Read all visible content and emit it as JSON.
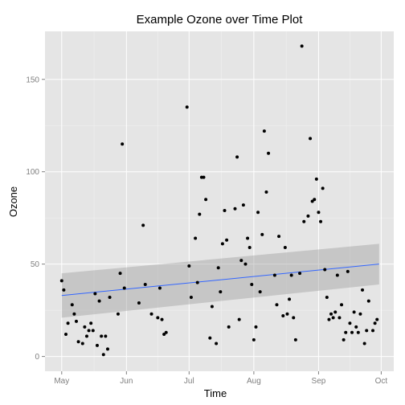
{
  "chart_data": {
    "type": "scatter",
    "title": "Example Ozone over Time Plot",
    "xlabel": "Time",
    "ylabel": "Ozone",
    "xlim": [
      "1973-04-23",
      "1973-10-07"
    ],
    "ylim": [
      -8,
      176
    ],
    "grid": true,
    "x_ticks": [
      {
        "date": "1973-05-01",
        "label": "May"
      },
      {
        "date": "1973-06-01",
        "label": "Jun"
      },
      {
        "date": "1973-07-01",
        "label": "Jul"
      },
      {
        "date": "1973-08-01",
        "label": "Aug"
      },
      {
        "date": "1973-09-01",
        "label": "Sep"
      },
      {
        "date": "1973-10-01",
        "label": "Oct"
      }
    ],
    "y_ticks": [
      {
        "value": 0,
        "label": "0"
      },
      {
        "value": 50,
        "label": "50"
      },
      {
        "value": 100,
        "label": "100"
      },
      {
        "value": 150,
        "label": "150"
      }
    ],
    "points": [
      {
        "x": "1973-05-01",
        "y": 41
      },
      {
        "x": "1973-05-02",
        "y": 36
      },
      {
        "x": "1973-05-03",
        "y": 12
      },
      {
        "x": "1973-05-04",
        "y": 18
      },
      {
        "x": "1973-05-06",
        "y": 28
      },
      {
        "x": "1973-05-07",
        "y": 23
      },
      {
        "x": "1973-05-08",
        "y": 19
      },
      {
        "x": "1973-05-09",
        "y": 8
      },
      {
        "x": "1973-05-11",
        "y": 7
      },
      {
        "x": "1973-05-12",
        "y": 16
      },
      {
        "x": "1973-05-13",
        "y": 11
      },
      {
        "x": "1973-05-14",
        "y": 14
      },
      {
        "x": "1973-05-15",
        "y": 18
      },
      {
        "x": "1973-05-16",
        "y": 14
      },
      {
        "x": "1973-05-17",
        "y": 34
      },
      {
        "x": "1973-05-18",
        "y": 6
      },
      {
        "x": "1973-05-19",
        "y": 30
      },
      {
        "x": "1973-05-20",
        "y": 11
      },
      {
        "x": "1973-05-21",
        "y": 1
      },
      {
        "x": "1973-05-22",
        "y": 11
      },
      {
        "x": "1973-05-23",
        "y": 4
      },
      {
        "x": "1973-05-24",
        "y": 32
      },
      {
        "x": "1973-05-28",
        "y": 23
      },
      {
        "x": "1973-05-29",
        "y": 45
      },
      {
        "x": "1973-05-30",
        "y": 115
      },
      {
        "x": "1973-05-31",
        "y": 37
      },
      {
        "x": "1973-06-07",
        "y": 29
      },
      {
        "x": "1973-06-09",
        "y": 71
      },
      {
        "x": "1973-06-10",
        "y": 39
      },
      {
        "x": "1973-06-13",
        "y": 23
      },
      {
        "x": "1973-06-16",
        "y": 21
      },
      {
        "x": "1973-06-17",
        "y": 37
      },
      {
        "x": "1973-06-18",
        "y": 20
      },
      {
        "x": "1973-06-19",
        "y": 12
      },
      {
        "x": "1973-06-20",
        "y": 13
      },
      {
        "x": "1973-06-30",
        "y": 135
      },
      {
        "x": "1973-07-01",
        "y": 49
      },
      {
        "x": "1973-07-02",
        "y": 32
      },
      {
        "x": "1973-07-04",
        "y": 64
      },
      {
        "x": "1973-07-05",
        "y": 40
      },
      {
        "x": "1973-07-06",
        "y": 77
      },
      {
        "x": "1973-07-07",
        "y": 97
      },
      {
        "x": "1973-07-08",
        "y": 97
      },
      {
        "x": "1973-07-09",
        "y": 85
      },
      {
        "x": "1973-07-11",
        "y": 10
      },
      {
        "x": "1973-07-12",
        "y": 27
      },
      {
        "x": "1973-07-14",
        "y": 7
      },
      {
        "x": "1973-07-15",
        "y": 48
      },
      {
        "x": "1973-07-16",
        "y": 35
      },
      {
        "x": "1973-07-17",
        "y": 61
      },
      {
        "x": "1973-07-18",
        "y": 79
      },
      {
        "x": "1973-07-19",
        "y": 63
      },
      {
        "x": "1973-07-20",
        "y": 16
      },
      {
        "x": "1973-07-23",
        "y": 80
      },
      {
        "x": "1973-07-24",
        "y": 108
      },
      {
        "x": "1973-07-25",
        "y": 20
      },
      {
        "x": "1973-07-26",
        "y": 52
      },
      {
        "x": "1973-07-27",
        "y": 82
      },
      {
        "x": "1973-07-28",
        "y": 50
      },
      {
        "x": "1973-07-29",
        "y": 64
      },
      {
        "x": "1973-07-30",
        "y": 59
      },
      {
        "x": "1973-07-31",
        "y": 39
      },
      {
        "x": "1973-08-01",
        "y": 9
      },
      {
        "x": "1973-08-02",
        "y": 16
      },
      {
        "x": "1973-08-03",
        "y": 78
      },
      {
        "x": "1973-08-04",
        "y": 35
      },
      {
        "x": "1973-08-05",
        "y": 66
      },
      {
        "x": "1973-08-06",
        "y": 122
      },
      {
        "x": "1973-08-07",
        "y": 89
      },
      {
        "x": "1973-08-08",
        "y": 110
      },
      {
        "x": "1973-08-11",
        "y": 44
      },
      {
        "x": "1973-08-12",
        "y": 28
      },
      {
        "x": "1973-08-13",
        "y": 65
      },
      {
        "x": "1973-08-15",
        "y": 22
      },
      {
        "x": "1973-08-16",
        "y": 59
      },
      {
        "x": "1973-08-17",
        "y": 23
      },
      {
        "x": "1973-08-18",
        "y": 31
      },
      {
        "x": "1973-08-19",
        "y": 44
      },
      {
        "x": "1973-08-20",
        "y": 21
      },
      {
        "x": "1973-08-21",
        "y": 9
      },
      {
        "x": "1973-08-23",
        "y": 45
      },
      {
        "x": "1973-08-24",
        "y": 168
      },
      {
        "x": "1973-08-25",
        "y": 73
      },
      {
        "x": "1973-08-27",
        "y": 76
      },
      {
        "x": "1973-08-28",
        "y": 118
      },
      {
        "x": "1973-08-29",
        "y": 84
      },
      {
        "x": "1973-08-30",
        "y": 85
      },
      {
        "x": "1973-08-31",
        "y": 96
      },
      {
        "x": "1973-09-01",
        "y": 78
      },
      {
        "x": "1973-09-02",
        "y": 73
      },
      {
        "x": "1973-09-03",
        "y": 91
      },
      {
        "x": "1973-09-04",
        "y": 47
      },
      {
        "x": "1973-09-05",
        "y": 32
      },
      {
        "x": "1973-09-06",
        "y": 20
      },
      {
        "x": "1973-09-07",
        "y": 23
      },
      {
        "x": "1973-09-08",
        "y": 21
      },
      {
        "x": "1973-09-09",
        "y": 24
      },
      {
        "x": "1973-09-10",
        "y": 44
      },
      {
        "x": "1973-09-11",
        "y": 21
      },
      {
        "x": "1973-09-12",
        "y": 28
      },
      {
        "x": "1973-09-13",
        "y": 9
      },
      {
        "x": "1973-09-14",
        "y": 13
      },
      {
        "x": "1973-09-15",
        "y": 46
      },
      {
        "x": "1973-09-16",
        "y": 18
      },
      {
        "x": "1973-09-17",
        "y": 13
      },
      {
        "x": "1973-09-18",
        "y": 24
      },
      {
        "x": "1973-09-19",
        "y": 16
      },
      {
        "x": "1973-09-20",
        "y": 13
      },
      {
        "x": "1973-09-21",
        "y": 23
      },
      {
        "x": "1973-09-22",
        "y": 36
      },
      {
        "x": "1973-09-23",
        "y": 7
      },
      {
        "x": "1973-09-24",
        "y": 14
      },
      {
        "x": "1973-09-25",
        "y": 30
      },
      {
        "x": "1973-09-27",
        "y": 14
      },
      {
        "x": "1973-09-28",
        "y": 18
      },
      {
        "x": "1973-09-29",
        "y": 20
      }
    ],
    "trend": {
      "x": [
        "1973-05-01",
        "1973-09-30"
      ],
      "y": [
        33,
        50
      ],
      "band_lower": [
        21,
        39
      ],
      "band_upper": [
        45,
        61
      ]
    },
    "colors": {
      "panel": "#e5e5e5",
      "grid_major": "#ffffff",
      "grid_minor": "#f2f2f2",
      "points": "#000000",
      "trend": "#3366ff",
      "band": "#999999"
    }
  }
}
